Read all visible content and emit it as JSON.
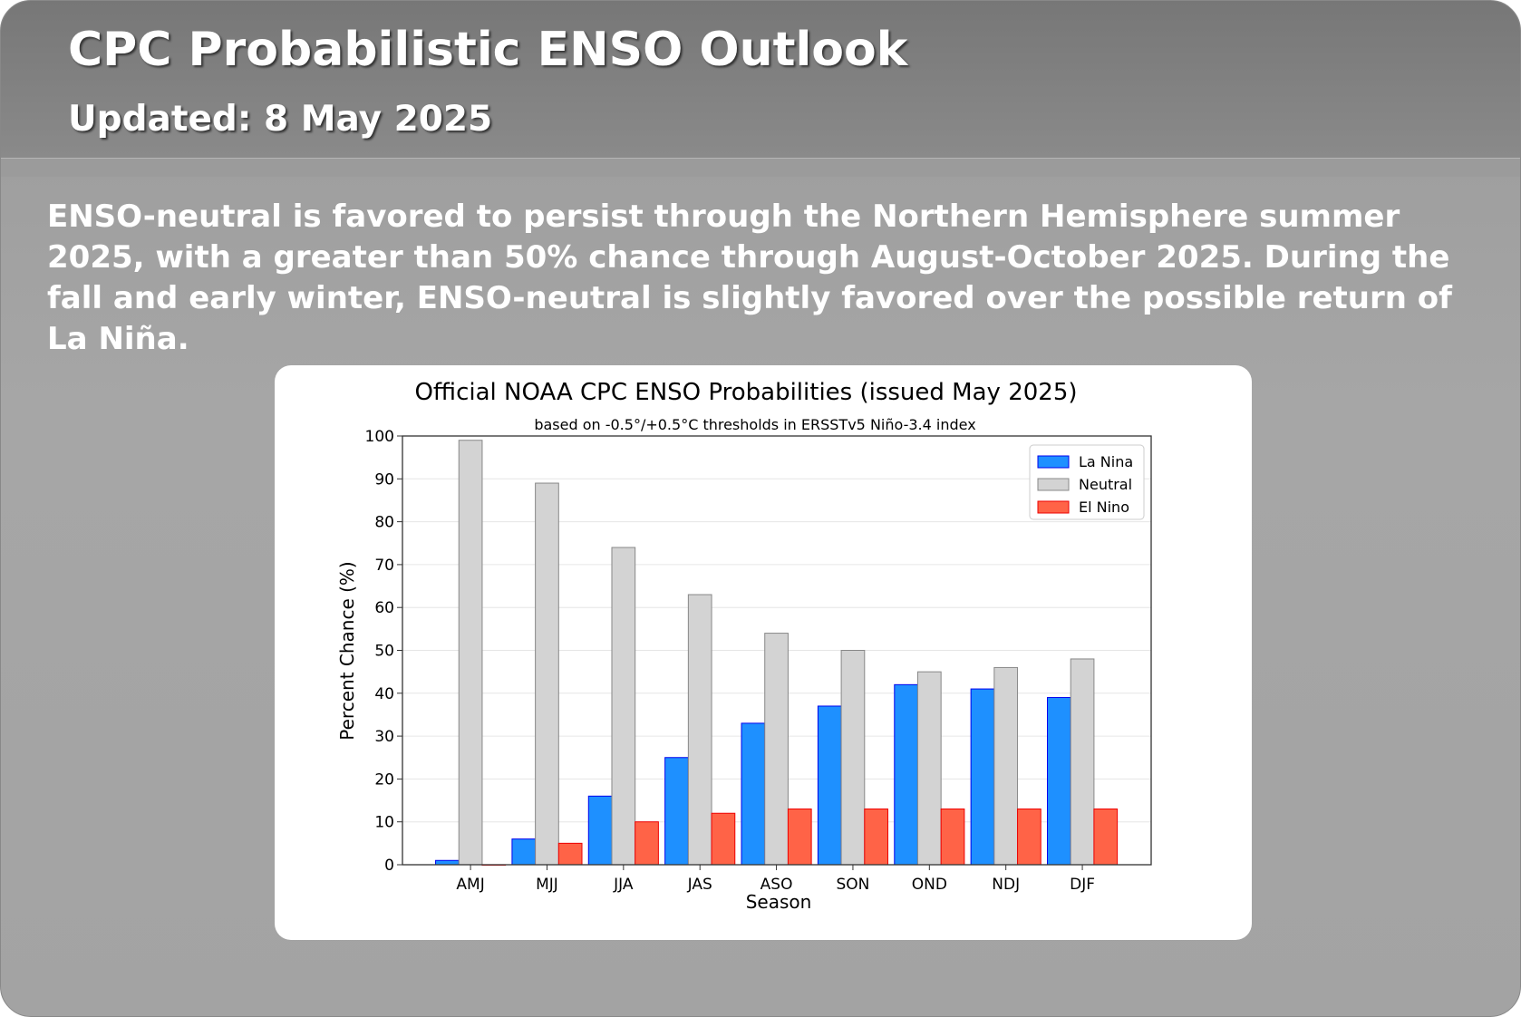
{
  "header": {
    "title": "CPC Probabilistic ENSO Outlook",
    "updated": "Updated:  8 May 2025"
  },
  "summary": "ENSO-neutral is favored to persist through the Northern Hemisphere summer 2025, with a greater than 50% chance through August-October 2025.  During the fall and early winter, ENSO-neutral is slightly favored over the possible return of La Niña.",
  "chart_data": {
    "type": "bar",
    "title": "Official NOAA CPC ENSO Probabilities (issued May 2025)",
    "subtitle": "based on -0.5°/+0.5°C thresholds in ERSSTv5 Niño-3.4 index",
    "xlabel": "Season",
    "ylabel": "Percent Chance (%)",
    "ylim": [
      0,
      100
    ],
    "yticks": [
      0,
      10,
      20,
      30,
      40,
      50,
      60,
      70,
      80,
      90,
      100
    ],
    "grid": true,
    "legend_position": "top-right",
    "categories": [
      "AMJ",
      "MJJ",
      "JJA",
      "JAS",
      "ASO",
      "SON",
      "OND",
      "NDJ",
      "DJF"
    ],
    "series": [
      {
        "name": "La Nina",
        "color": "#1e90ff",
        "edge": "#0000ee",
        "values": [
          1,
          6,
          16,
          25,
          33,
          37,
          42,
          41,
          39
        ]
      },
      {
        "name": "Neutral",
        "color": "#d3d3d3",
        "edge": "#888888",
        "values": [
          99,
          89,
          74,
          63,
          54,
          50,
          45,
          46,
          48
        ]
      },
      {
        "name": "El Nino",
        "color": "#ff6347",
        "edge": "#ee0000",
        "values": [
          0,
          5,
          10,
          12,
          13,
          13,
          13,
          13,
          13
        ]
      }
    ]
  }
}
